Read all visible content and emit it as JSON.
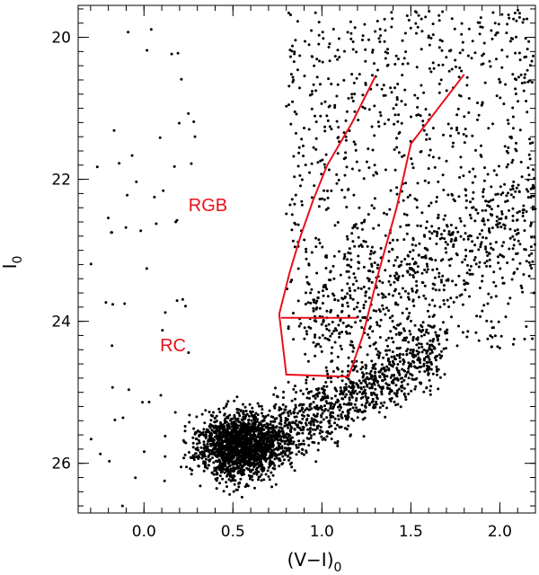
{
  "chart_data": {
    "type": "scatter",
    "title": "",
    "xlabel": "(V−I)",
    "xlabel_sub": "0",
    "ylabel": "I",
    "ylabel_sub": "0",
    "xlim": [
      -0.37,
      2.2
    ],
    "ylim": [
      26.7,
      19.55
    ],
    "y_inverted": true,
    "x_ticks": [
      0.0,
      0.5,
      1.0,
      1.5,
      2.0
    ],
    "x_tick_labels": [
      "0.0",
      "0.5",
      "1.0",
      "1.5",
      "2.0"
    ],
    "y_ticks": [
      20,
      22,
      24,
      26
    ],
    "y_tick_labels": [
      "20",
      "22",
      "24",
      "26"
    ],
    "grid": false,
    "point_color": "#000000",
    "overlay_color": "#e8101a",
    "annotations": [
      {
        "text": "RGB",
        "x": 0.25,
        "y": 22.45
      },
      {
        "text": "RC",
        "x": 0.09,
        "y": 24.42
      }
    ],
    "overlays": [
      {
        "name": "rgb-selection-box",
        "points": [
          [
            1.3,
            20.55
          ],
          [
            1.17,
            21.2
          ],
          [
            1.03,
            21.8
          ],
          [
            0.95,
            22.3
          ],
          [
            0.88,
            22.8
          ],
          [
            0.82,
            23.3
          ],
          [
            0.76,
            23.9
          ],
          [
            0.8,
            24.75
          ],
          [
            1.15,
            24.78
          ],
          [
            1.23,
            24.2
          ],
          [
            1.32,
            23.3
          ],
          [
            1.42,
            22.4
          ],
          [
            1.5,
            21.5
          ],
          [
            1.8,
            20.52
          ]
        ]
      },
      {
        "name": "rc-selection-line",
        "points": [
          [
            0.77,
            23.95
          ],
          [
            1.2,
            23.95
          ]
        ]
      }
    ],
    "points_note": "Approximately 4000 stellar points: dense red-clump concentration around (V-I)=0.5, I=25.8, extending toward redder colors and brighter magnitudes; sparse giant branch from I~20 to 24."
  }
}
